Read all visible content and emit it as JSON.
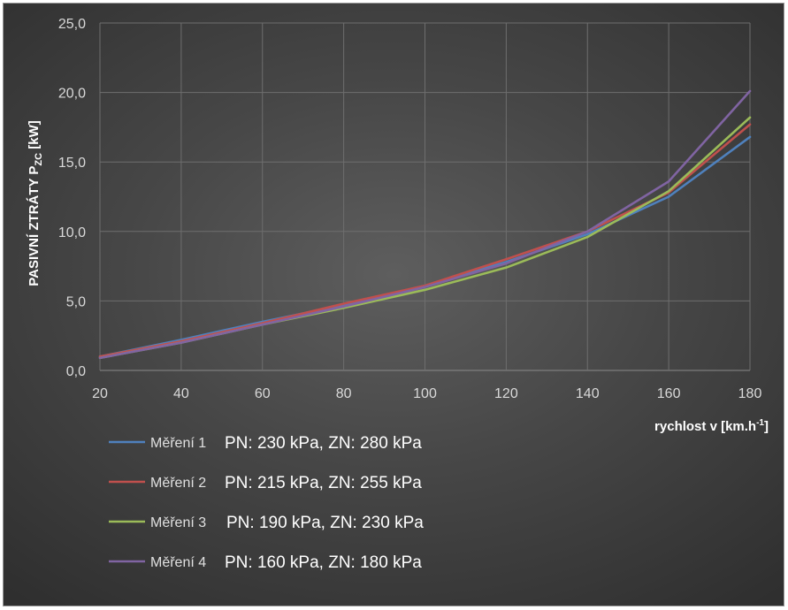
{
  "chart_data": {
    "type": "line",
    "title": "",
    "ylabel": "PASIVNÍ ZTRÁTY  P",
    "ylabel_sub": "ZC",
    "ylabel_unit": " [kW]",
    "xlabel": "rychlost v [km.h",
    "xlabel_sup": "-1",
    "xlabel_end": "]",
    "xlim": [
      20,
      180
    ],
    "ylim": [
      0,
      25
    ],
    "x_ticks": [
      "20",
      "40",
      "60",
      "80",
      "100",
      "120",
      "140",
      "160",
      "180"
    ],
    "y_ticks": [
      "0,0",
      "5,0",
      "10,0",
      "15,0",
      "20,0",
      "25,0"
    ],
    "grid": true,
    "legend_position": "bottom-left",
    "x": [
      20,
      40,
      60,
      80,
      100,
      120,
      140,
      160,
      180
    ],
    "series": [
      {
        "name": "Měření 1",
        "description": "PN: 230 kPa,  ZN: 280 kPa",
        "color": "#4f81bd",
        "values": [
          1.0,
          2.2,
          3.5,
          4.7,
          6.1,
          7.8,
          9.8,
          12.5,
          16.8
        ]
      },
      {
        "name": "Měření 2",
        "description": "PN: 215 kPa,  ZN: 255 kPa",
        "color": "#c0504d",
        "values": [
          1.0,
          2.1,
          3.4,
          4.8,
          6.1,
          8.0,
          10.0,
          12.8,
          17.7
        ]
      },
      {
        "name": "Měření 3",
        "description": "PN: 190 kPa,  ZN: 230 kPa",
        "color": "#9bbb59",
        "values": [
          0.9,
          2.0,
          3.3,
          4.5,
          5.8,
          7.4,
          9.6,
          12.9,
          18.2
        ]
      },
      {
        "name": "Měření 4",
        "description": "PN: 160 kPa,  ZN: 180 kPa",
        "color": "#8064a2",
        "values": [
          0.9,
          2.0,
          3.3,
          4.6,
          6.0,
          7.7,
          10.0,
          13.6,
          20.1
        ]
      }
    ]
  }
}
